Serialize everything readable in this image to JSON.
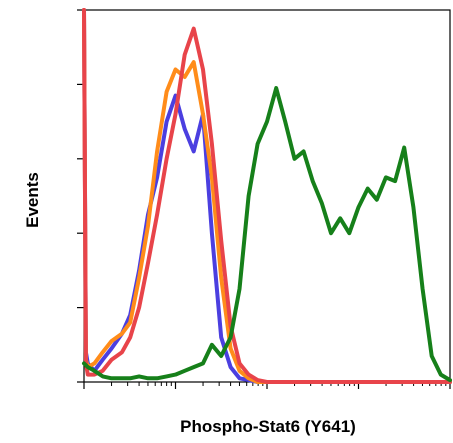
{
  "chart_data": {
    "type": "line",
    "title": "",
    "xlabel": "Phospho-Stat6 (Y641)",
    "ylabel": "Events",
    "x_scale": "log",
    "xlim": [
      1,
      10000
    ],
    "ylim": [
      0,
      100
    ],
    "grid": false,
    "legend": "none",
    "series": [
      {
        "color": "#4b3fe0",
        "x": [
          1,
          1.05,
          1.1,
          1.3,
          1.6,
          2.0,
          2.6,
          3.2,
          4.0,
          5.0,
          6.3,
          8.0,
          10,
          12.6,
          15.8,
          20,
          25,
          31.6,
          40,
          50,
          63,
          79,
          100,
          1000,
          10000
        ],
        "y": [
          100,
          8,
          5,
          3,
          6,
          9,
          13,
          18,
          30,
          45,
          55,
          70,
          77,
          68,
          62,
          72,
          40,
          12,
          4,
          1,
          0.5,
          0,
          0,
          0,
          0
        ]
      },
      {
        "color": "#ff8c1a",
        "x": [
          1,
          1.05,
          1.1,
          1.3,
          1.6,
          2.0,
          2.6,
          3.2,
          4.0,
          5.0,
          6.3,
          8.0,
          10,
          12.6,
          15.8,
          20,
          25,
          31.6,
          40,
          50,
          63,
          79,
          100,
          1000,
          10000
        ],
        "y": [
          100,
          6,
          4,
          5,
          8,
          11,
          13,
          16,
          28,
          42,
          62,
          78,
          84,
          82,
          86,
          72,
          55,
          28,
          9,
          3,
          1,
          0,
          0,
          0,
          0
        ]
      },
      {
        "color": "#e8444a",
        "x": [
          1,
          1.05,
          1.1,
          1.3,
          1.6,
          2.0,
          2.6,
          3.2,
          4.0,
          5.0,
          6.3,
          8.0,
          10,
          12.6,
          15.8,
          20,
          25,
          31.6,
          40,
          50,
          63,
          79,
          100,
          1000,
          10000
        ],
        "y": [
          100,
          5,
          2,
          2,
          3,
          6,
          8,
          12,
          20,
          32,
          45,
          60,
          72,
          88,
          95,
          84,
          64,
          38,
          15,
          5,
          2,
          0.5,
          0,
          0,
          0
        ]
      },
      {
        "color": "#16801a",
        "x": [
          1,
          1.1,
          1.3,
          1.6,
          2.0,
          2.5,
          3.2,
          4.0,
          5.0,
          6.3,
          8.0,
          10,
          12.6,
          15.8,
          20,
          25,
          31.6,
          40,
          50,
          63,
          79,
          100,
          126,
          158,
          200,
          251,
          316,
          398,
          501,
          631,
          794,
          1000,
          1259,
          1585,
          1995,
          2512,
          3162,
          3981,
          5012,
          6310,
          7943,
          10000
        ],
        "y": [
          5,
          4,
          3,
          1.5,
          1,
          1,
          1,
          1.5,
          1,
          1,
          1.5,
          2,
          3,
          4,
          5,
          10,
          7,
          12,
          25,
          50,
          64,
          70,
          79,
          70,
          60,
          62,
          54,
          48,
          40,
          44,
          40,
          47,
          52,
          49,
          55,
          54,
          63,
          47,
          25,
          7,
          2,
          0.5
        ]
      }
    ]
  }
}
